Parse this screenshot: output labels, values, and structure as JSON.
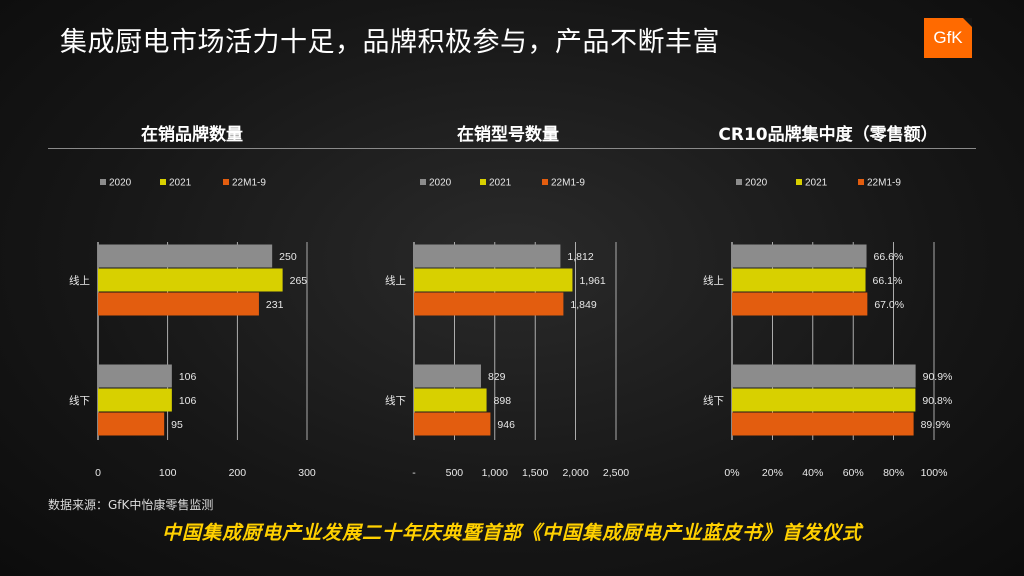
{
  "title": "集成厨电市场活力十足，品牌积极参与，产品不断丰富",
  "logo": {
    "text": "GfK"
  },
  "source": "数据来源：GfK中怡康零售监测",
  "footer": "中国集成厨电产业发展二十年庆典暨首部《中国集成厨电产业蓝皮书》首发仪式",
  "colors": {
    "2020": "#8c8c8c",
    "2021": "#d8d000",
    "22M1-9": "#e35d0f"
  },
  "chart_data": [
    {
      "type": "bar",
      "orientation": "horizontal",
      "title": "在销品牌数量",
      "categories": [
        "线上",
        "线下"
      ],
      "series": [
        {
          "name": "2020",
          "values": [
            250,
            106
          ],
          "labels": [
            "250",
            "106"
          ]
        },
        {
          "name": "2021",
          "values": [
            265,
            106
          ],
          "labels": [
            "265",
            "106"
          ]
        },
        {
          "name": "22M1-9",
          "values": [
            231,
            95
          ],
          "labels": [
            "231",
            "95"
          ]
        }
      ],
      "xlim": [
        0,
        300
      ],
      "ticks": [
        0,
        100,
        200,
        300
      ],
      "tick_labels": [
        "0",
        "100",
        "200",
        "300"
      ],
      "grid": true,
      "legend": "top"
    },
    {
      "type": "bar",
      "orientation": "horizontal",
      "title": "在销型号数量",
      "categories": [
        "线上",
        "线下"
      ],
      "series": [
        {
          "name": "2020",
          "values": [
            1812,
            829
          ],
          "labels": [
            "1,812",
            "829"
          ]
        },
        {
          "name": "2021",
          "values": [
            1961,
            898
          ],
          "labels": [
            "1,961",
            "898"
          ]
        },
        {
          "name": "22M1-9",
          "values": [
            1849,
            946
          ],
          "labels": [
            "1,849",
            "946"
          ]
        }
      ],
      "xlim": [
        0,
        2500
      ],
      "ticks": [
        0,
        500,
        1000,
        1500,
        2000,
        2500
      ],
      "tick_labels": [
        "-",
        "500",
        "1,000",
        "1,500",
        "2,000",
        "2,500"
      ],
      "grid": true,
      "legend": "top"
    },
    {
      "type": "bar",
      "orientation": "horizontal",
      "title": "CR10品牌集中度（零售额）",
      "categories": [
        "线上",
        "线下"
      ],
      "series": [
        {
          "name": "2020",
          "values": [
            66.6,
            90.9
          ],
          "labels": [
            "66.6%",
            "90.9%"
          ]
        },
        {
          "name": "2021",
          "values": [
            66.1,
            90.8
          ],
          "labels": [
            "66.1%",
            "90.8%"
          ]
        },
        {
          "name": "22M1-9",
          "values": [
            67.0,
            89.9
          ],
          "labels": [
            "67.0%",
            "89.9%"
          ]
        }
      ],
      "xlim": [
        0,
        100
      ],
      "ticks": [
        0,
        20,
        40,
        60,
        80,
        100
      ],
      "tick_labels": [
        "0%",
        "20%",
        "40%",
        "60%",
        "80%",
        "100%"
      ],
      "grid": true,
      "legend": "top"
    }
  ]
}
